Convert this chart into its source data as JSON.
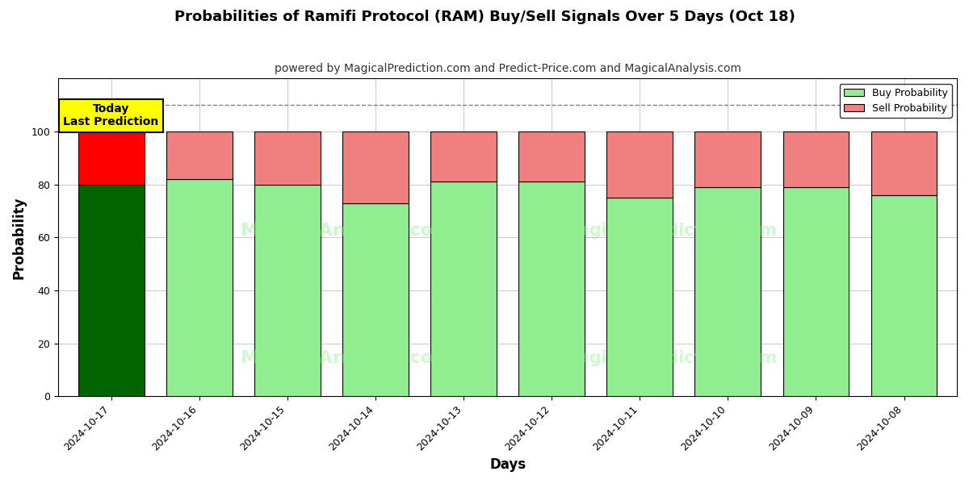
{
  "title": "Probabilities of Ramifi Protocol (RAM) Buy/Sell Signals Over 5 Days (Oct 18)",
  "subtitle": "powered by MagicalPrediction.com and Predict-Price.com and MagicalAnalysis.com",
  "xlabel": "Days",
  "ylabel": "Probability",
  "dates": [
    "2024-10-17",
    "2024-10-16",
    "2024-10-15",
    "2024-10-14",
    "2024-10-13",
    "2024-10-12",
    "2024-10-11",
    "2024-10-10",
    "2024-10-09",
    "2024-10-08"
  ],
  "buy_probs": [
    80,
    82,
    80,
    73,
    81,
    81,
    75,
    79,
    79,
    76
  ],
  "sell_probs": [
    20,
    18,
    20,
    27,
    19,
    19,
    25,
    21,
    21,
    24
  ],
  "today_buy_color": "#006400",
  "today_sell_color": "#FF0000",
  "buy_color": "#90EE90",
  "sell_color": "#F08080",
  "bar_edge_color": "#000000",
  "today_annotation_bg": "#FFFF00",
  "today_annotation_text": "Today\nLast Prediction",
  "dashed_line_y": 110,
  "ylim": [
    0,
    120
  ],
  "yticks": [
    0,
    20,
    40,
    60,
    80,
    100
  ],
  "legend_buy_label": "Buy Probability",
  "legend_sell_label": "Sell Probability",
  "title_fontsize": 13,
  "subtitle_fontsize": 10,
  "axis_label_fontsize": 12,
  "tick_fontsize": 9,
  "background_color": "#ffffff",
  "grid_color": "#cccccc"
}
